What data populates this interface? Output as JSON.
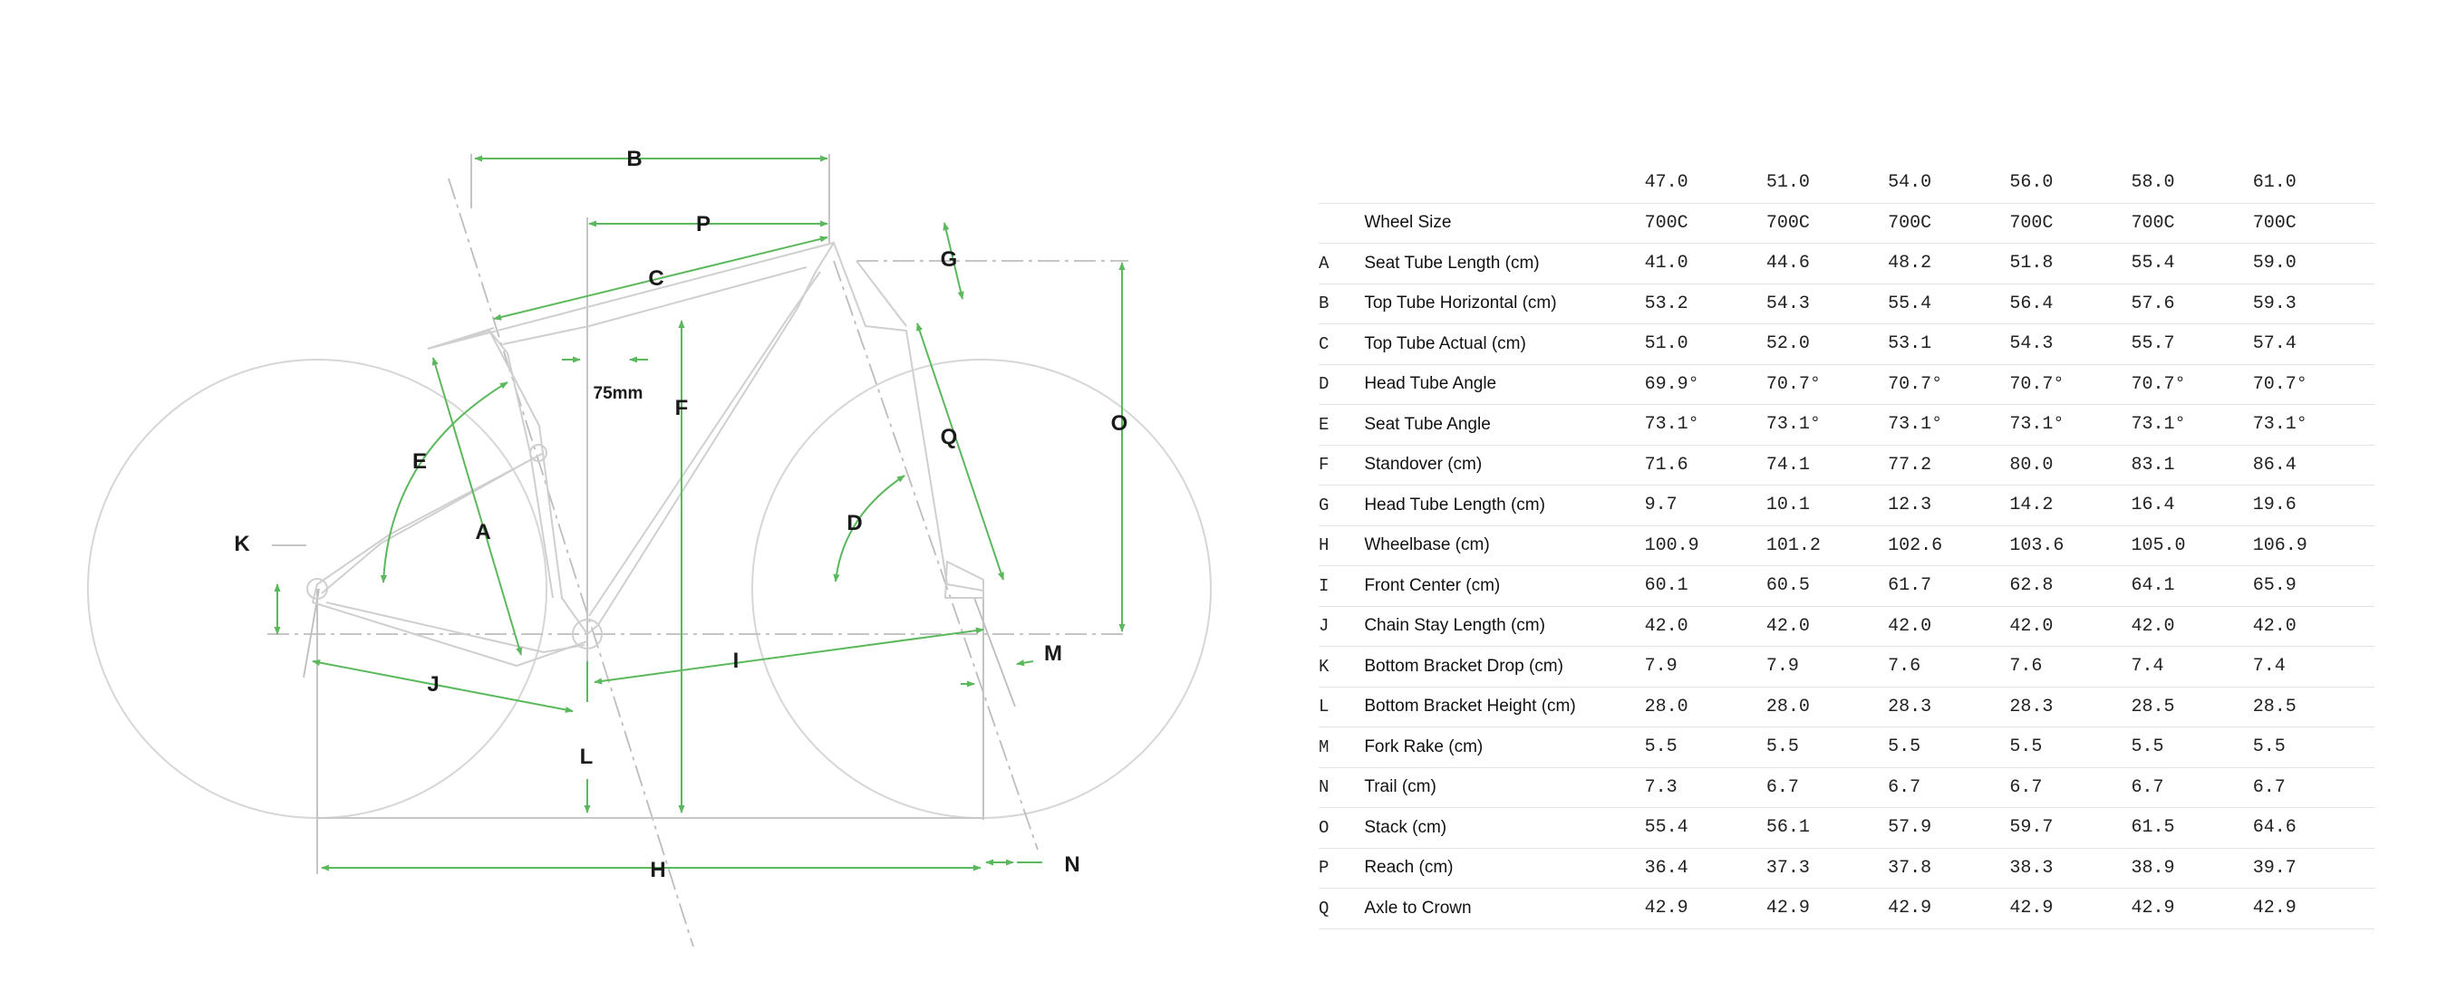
{
  "diagram": {
    "labels": {
      "A": "A",
      "B": "B",
      "C": "C",
      "D": "D",
      "E": "E",
      "F": "F",
      "G": "G",
      "H": "H",
      "I": "I",
      "J": "J",
      "K": "K",
      "L": "L",
      "M": "M",
      "N": "N",
      "O": "O",
      "P": "P",
      "Q": "Q"
    },
    "offset_note": "75mm",
    "colors": {
      "dimension": "#5cb85c",
      "frame": "#cfcfcf",
      "wheel": "#d4d4d4",
      "guide": "#bdbdbd"
    }
  },
  "table": {
    "sizes": [
      "47.0",
      "51.0",
      "54.0",
      "56.0",
      "58.0",
      "61.0"
    ],
    "rows": [
      {
        "key": "",
        "label": "Wheel Size",
        "values": [
          "700C",
          "700C",
          "700C",
          "700C",
          "700C",
          "700C"
        ]
      },
      {
        "key": "A",
        "label": "Seat Tube Length (cm)",
        "values": [
          "41.0",
          "44.6",
          "48.2",
          "51.8",
          "55.4",
          "59.0"
        ]
      },
      {
        "key": "B",
        "label": "Top Tube Horizontal (cm)",
        "values": [
          "53.2",
          "54.3",
          "55.4",
          "56.4",
          "57.6",
          "59.3"
        ]
      },
      {
        "key": "C",
        "label": "Top Tube Actual (cm)",
        "values": [
          "51.0",
          "52.0",
          "53.1",
          "54.3",
          "55.7",
          "57.4"
        ]
      },
      {
        "key": "D",
        "label": "Head Tube Angle",
        "values": [
          "69.9°",
          "70.7°",
          "70.7°",
          "70.7°",
          "70.7°",
          "70.7°"
        ]
      },
      {
        "key": "E",
        "label": "Seat Tube Angle",
        "values": [
          "73.1°",
          "73.1°",
          "73.1°",
          "73.1°",
          "73.1°",
          "73.1°"
        ]
      },
      {
        "key": "F",
        "label": "Standover (cm)",
        "values": [
          "71.6",
          "74.1",
          "77.2",
          "80.0",
          "83.1",
          "86.4"
        ]
      },
      {
        "key": "G",
        "label": "Head Tube Length (cm)",
        "values": [
          "9.7",
          "10.1",
          "12.3",
          "14.2",
          "16.4",
          "19.6"
        ]
      },
      {
        "key": "H",
        "label": "Wheelbase (cm)",
        "values": [
          "100.9",
          "101.2",
          "102.6",
          "103.6",
          "105.0",
          "106.9"
        ]
      },
      {
        "key": "I",
        "label": "Front Center (cm)",
        "values": [
          "60.1",
          "60.5",
          "61.7",
          "62.8",
          "64.1",
          "65.9"
        ]
      },
      {
        "key": "J",
        "label": "Chain Stay Length (cm)",
        "values": [
          "42.0",
          "42.0",
          "42.0",
          "42.0",
          "42.0",
          "42.0"
        ]
      },
      {
        "key": "K",
        "label": "Bottom Bracket Drop (cm)",
        "values": [
          "7.9",
          "7.9",
          "7.6",
          "7.6",
          "7.4",
          "7.4"
        ]
      },
      {
        "key": "L",
        "label": "Bottom Bracket Height (cm)",
        "values": [
          "28.0",
          "28.0",
          "28.3",
          "28.3",
          "28.5",
          "28.5"
        ]
      },
      {
        "key": "M",
        "label": "Fork Rake (cm)",
        "values": [
          "5.5",
          "5.5",
          "5.5",
          "5.5",
          "5.5",
          "5.5"
        ]
      },
      {
        "key": "N",
        "label": "Trail (cm)",
        "values": [
          "7.3",
          "6.7",
          "6.7",
          "6.7",
          "6.7",
          "6.7"
        ]
      },
      {
        "key": "O",
        "label": "Stack (cm)",
        "values": [
          "55.4",
          "56.1",
          "57.9",
          "59.7",
          "61.5",
          "64.6"
        ]
      },
      {
        "key": "P",
        "label": "Reach (cm)",
        "values": [
          "36.4",
          "37.3",
          "37.8",
          "38.3",
          "38.9",
          "39.7"
        ]
      },
      {
        "key": "Q",
        "label": "Axle to Crown",
        "values": [
          "42.9",
          "42.9",
          "42.9",
          "42.9",
          "42.9",
          "42.9"
        ]
      }
    ]
  }
}
